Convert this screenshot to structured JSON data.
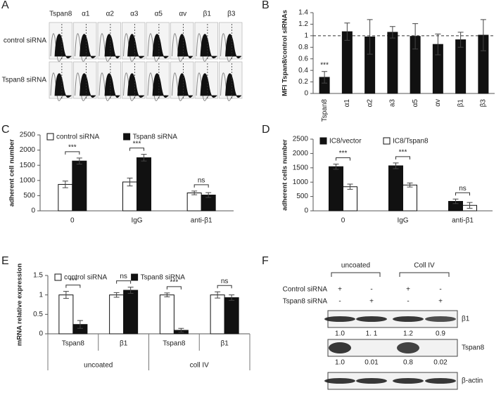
{
  "panel_a": {
    "label": "A",
    "columns": [
      "Tspan8",
      "α1",
      "α2",
      "α3",
      "α5",
      "αv",
      "β1",
      "β3"
    ],
    "rows": [
      "control siRNA",
      "Tspan8 siRNA"
    ]
  },
  "chart_data": [
    {
      "type": "bar",
      "label": "B",
      "ylabel": "MFI Tspan8/control siRNAs",
      "categories": [
        "Tspan8",
        "α1",
        "α2",
        "a3",
        "α5",
        "αv",
        "β1",
        "β3"
      ],
      "values": [
        0.28,
        1.07,
        0.98,
        1.06,
        0.99,
        0.85,
        0.93,
        1.01
      ],
      "errors": [
        0.1,
        0.15,
        0.3,
        0.1,
        0.22,
        0.18,
        0.13,
        0.27
      ],
      "color": "#111111",
      "ylim": [
        0,
        1.4
      ],
      "yticks": [
        0,
        0.2,
        0.4,
        0.6,
        0.8,
        1,
        1.2,
        1.4
      ],
      "reference_line": 1,
      "annotations": [
        "***"
      ]
    },
    {
      "type": "bar",
      "label": "C",
      "ylabel": "adherent cell number",
      "categories": [
        "0",
        "IgG",
        "anti-β1"
      ],
      "series": [
        {
          "name": "control siRNA",
          "color": "#ffffff",
          "values": [
            870,
            950,
            590
          ],
          "errors": [
            110,
            130,
            60
          ]
        },
        {
          "name": "Tspan8 siRNA",
          "color": "#111111",
          "values": [
            1640,
            1750,
            520
          ],
          "errors": [
            100,
            110,
            80
          ]
        }
      ],
      "ylim": [
        0,
        2500
      ],
      "yticks": [
        0,
        500,
        1000,
        1500,
        2000,
        2500
      ],
      "annotations": [
        "***",
        "***",
        "ns"
      ]
    },
    {
      "type": "bar",
      "label": "D",
      "ylabel": "adherent cells number",
      "categories": [
        "0",
        "IgG",
        "anti-β1"
      ],
      "series": [
        {
          "name": "IC8/vector",
          "color": "#111111",
          "values": [
            1540,
            1570,
            330
          ],
          "errors": [
            90,
            100,
            80
          ]
        },
        {
          "name": "IC8/Tspan8",
          "color": "#ffffff",
          "values": [
            840,
            900,
            190
          ],
          "errors": [
            90,
            70,
            100
          ]
        }
      ],
      "ylim": [
        0,
        2500
      ],
      "yticks": [
        0,
        500,
        1000,
        1500,
        2000,
        2500
      ],
      "annotations": [
        "***",
        "***",
        "ns"
      ]
    },
    {
      "type": "bar",
      "label": "E",
      "ylabel": "mRNA relative expression",
      "categories": [
        "Tspan8",
        "β1",
        "Tspan8",
        "β1"
      ],
      "groups": [
        "uncoated",
        "coll IV"
      ],
      "series": [
        {
          "name": "control siRNA",
          "color": "#ffffff",
          "values": [
            1,
            1,
            1,
            1
          ],
          "errors": [
            0.09,
            0.06,
            0.05,
            0.08
          ]
        },
        {
          "name": "Tspan8 siRNA",
          "color": "#111111",
          "values": [
            0.24,
            1.12,
            0.09,
            0.93
          ],
          "errors": [
            0.1,
            0.08,
            0.05,
            0.07
          ]
        }
      ],
      "ylim": [
        0,
        1.5
      ],
      "yticks": [
        0,
        0.5,
        1,
        1.5
      ],
      "annotations": [
        "***",
        "ns",
        "***",
        "ns"
      ]
    }
  ],
  "panel_f": {
    "label": "F",
    "groups": [
      "uncoated",
      "Coll IV"
    ],
    "treatments": [
      {
        "name": "Control siRNA",
        "marks": [
          "+",
          "-",
          "+",
          "-"
        ]
      },
      {
        "name": "Tspan8 siRNA",
        "marks": [
          "-",
          "+",
          "-",
          "+"
        ]
      }
    ],
    "blots": [
      {
        "name": "β1",
        "quantities": [
          "1.0",
          "1. 1",
          "1.2",
          "0.9"
        ]
      },
      {
        "name": "Tspan8",
        "quantities": [
          "1.0",
          "0.01",
          "0.8",
          "0.02"
        ]
      },
      {
        "name": "β-actin"
      }
    ]
  }
}
